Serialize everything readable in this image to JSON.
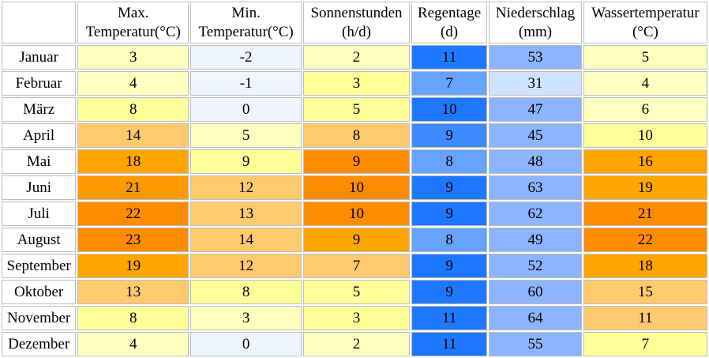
{
  "headers": {
    "max_temp_line1": "Max.",
    "max_temp_line2": "Temperatur(°C)",
    "min_temp_line1": "Min.",
    "min_temp_line2": "Temperatur(°C)",
    "sun_line1": "Sonnenstunden",
    "sun_line2": "(h/d)",
    "rain_days_line1": "Regentage",
    "rain_days_line2": "(d)",
    "precip_line1": "Niederschlag",
    "precip_line2": "(mm)",
    "water_line1": "Wassertemperatur",
    "water_line2": "(°C)"
  },
  "rows": [
    {
      "month": "Januar",
      "max": "3",
      "min": "-2",
      "sun": "2",
      "rain_days": "11",
      "precip": "53",
      "water": "5"
    },
    {
      "month": "Februar",
      "max": "4",
      "min": "-1",
      "sun": "3",
      "rain_days": "7",
      "precip": "31",
      "water": "4"
    },
    {
      "month": "März",
      "max": "8",
      "min": "0",
      "sun": "5",
      "rain_days": "10",
      "precip": "47",
      "water": "6"
    },
    {
      "month": "April",
      "max": "14",
      "min": "5",
      "sun": "8",
      "rain_days": "9",
      "precip": "45",
      "water": "10"
    },
    {
      "month": "Mai",
      "max": "18",
      "min": "9",
      "sun": "9",
      "rain_days": "8",
      "precip": "48",
      "water": "16"
    },
    {
      "month": "Juni",
      "max": "21",
      "min": "12",
      "sun": "10",
      "rain_days": "9",
      "precip": "63",
      "water": "19"
    },
    {
      "month": "Juli",
      "max": "22",
      "min": "13",
      "sun": "10",
      "rain_days": "9",
      "precip": "62",
      "water": "21"
    },
    {
      "month": "August",
      "max": "23",
      "min": "14",
      "sun": "9",
      "rain_days": "8",
      "precip": "49",
      "water": "22"
    },
    {
      "month": "September",
      "max": "19",
      "min": "12",
      "sun": "7",
      "rain_days": "9",
      "precip": "52",
      "water": "18"
    },
    {
      "month": "Oktober",
      "max": "13",
      "min": "8",
      "sun": "5",
      "rain_days": "9",
      "precip": "60",
      "water": "15"
    },
    {
      "month": "November",
      "max": "8",
      "min": "3",
      "sun": "3",
      "rain_days": "11",
      "precip": "64",
      "water": "11"
    },
    {
      "month": "Dezember",
      "max": "4",
      "min": "0",
      "sun": "2",
      "rain_days": "11",
      "precip": "55",
      "water": "7"
    }
  ],
  "cell_colors": {
    "max": [
      "#ffffc0",
      "#ffffc0",
      "#ffff99",
      "#ffc96d",
      "#ffa500",
      "#ff9900",
      "#ff8c00",
      "#ff8c00",
      "#ffa500",
      "#ffc96d",
      "#ffff99",
      "#ffffc0"
    ],
    "min": [
      "#eef5ff",
      "#eef5ff",
      "#eef5ff",
      "#ffffc0",
      "#ffff99",
      "#ffc96d",
      "#ffc96d",
      "#ffc96d",
      "#ffc96d",
      "#ffff99",
      "#ffffc0",
      "#eef5ff"
    ],
    "sun": [
      "#ffffc0",
      "#ffff99",
      "#ffff99",
      "#ffc96d",
      "#ff8c00",
      "#ff8c00",
      "#ff8c00",
      "#ffa500",
      "#ffc96d",
      "#ffff99",
      "#ffff99",
      "#ffffc0"
    ],
    "rain_days": [
      "#1e78ff",
      "#66a3ff",
      "#1e78ff",
      "#3d8bff",
      "#66a3ff",
      "#1e78ff",
      "#1e78ff",
      "#66a3ff",
      "#1e78ff",
      "#1e78ff",
      "#1e78ff",
      "#1e78ff"
    ],
    "precip": [
      "#8db4ff",
      "#cfe2ff",
      "#8db4ff",
      "#8db4ff",
      "#8db4ff",
      "#8db4ff",
      "#8db4ff",
      "#8db4ff",
      "#8db4ff",
      "#8db4ff",
      "#8db4ff",
      "#8db4ff"
    ],
    "water": [
      "#ffffc0",
      "#ffffc0",
      "#ffffc0",
      "#ffff99",
      "#ffa500",
      "#ffa500",
      "#ff8c00",
      "#ff8c00",
      "#ffa500",
      "#ffc96d",
      "#ffc96d",
      "#ffff99"
    ]
  }
}
